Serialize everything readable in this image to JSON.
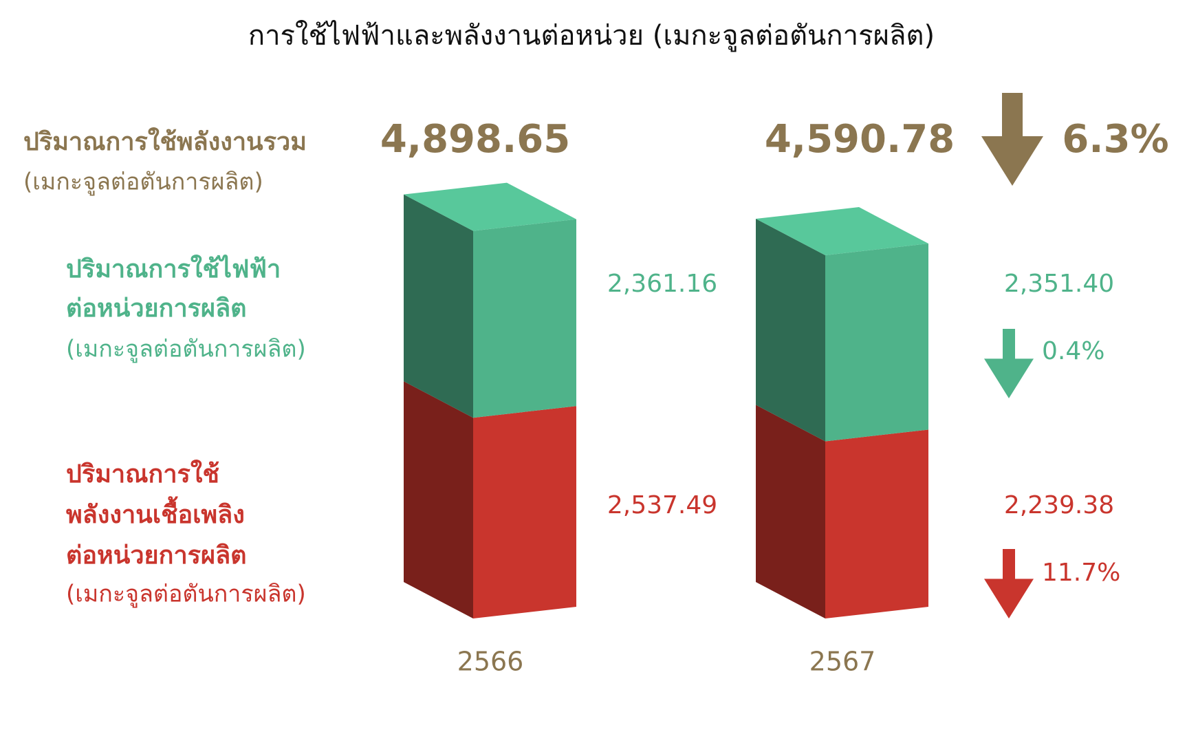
{
  "chart_data": {
    "type": "stacked_bar_3d",
    "title": "การใช้ไฟฟ้าและพลังงานต่อหน่วย (เมกะจูลต่อตันการผลิต)",
    "categories": [
      "2566",
      "2567"
    ],
    "total": {
      "name": "ปริมาณการใช้พลังงานรวม",
      "unit": "(เมกะจูลต่อตันการผลิต)",
      "values": [
        4898.65,
        4590.78
      ],
      "value_labels": [
        "4,898.65",
        "4,590.78"
      ],
      "change": {
        "value": 6.3,
        "label": "6.3%"
      },
      "color": "#8b7650"
    },
    "series": [
      {
        "name_lines": [
          "ปริมาณการใช้",
          "พลังงานเชื้อเพลิง",
          "ต่อหน่วยการผลิต"
        ],
        "unit": "(เมกะจูลต่อตันการผลิต)",
        "color": "#c9352d",
        "values": [
          2537.49,
          2239.38
        ],
        "value_labels": [
          "2,537.49",
          "2,239.38"
        ],
        "change": {
          "value": 11.7,
          "label": "11.7%"
        }
      },
      {
        "name_lines": [
          "ปริมาณการใช้ไฟฟ้า",
          "ต่อหน่วยการผลิต"
        ],
        "unit": "(เมกะจูลต่อตันการผลิต)",
        "color": "#4fb38a",
        "values": [
          2361.16,
          2351.4
        ],
        "value_labels": [
          "2,361.16",
          "2,351.40"
        ],
        "change": {
          "value": 0.4,
          "label": "0.4%"
        }
      }
    ]
  }
}
